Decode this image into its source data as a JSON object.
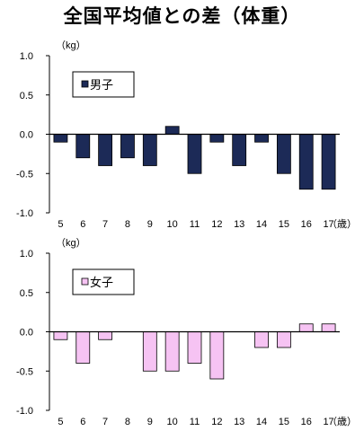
{
  "title": "全国平均値との差（体重）",
  "chart_data": [
    {
      "type": "bar",
      "unit_label": "（kg）",
      "x_unit_label": "（歳）",
      "legend": "男子",
      "legend_position": "top-left",
      "color": "#1c2a57",
      "categories": [
        "5",
        "6",
        "7",
        "8",
        "9",
        "10",
        "11",
        "12",
        "13",
        "14",
        "15",
        "16",
        "17"
      ],
      "values": [
        -0.1,
        -0.3,
        -0.4,
        -0.3,
        -0.4,
        0.1,
        -0.5,
        -0.1,
        -0.4,
        -0.1,
        -0.5,
        -0.7,
        -0.7
      ],
      "ylim": [
        -1.0,
        1.0
      ],
      "yticks": [
        "1.0",
        "0.5",
        "0.0",
        "-0.5",
        "-1.0"
      ],
      "grid": false
    },
    {
      "type": "bar",
      "unit_label": "（kg）",
      "x_unit_label": "（歳）",
      "legend": "女子",
      "legend_position": "top-left",
      "color": "#f6c3f3",
      "categories": [
        "5",
        "6",
        "7",
        "8",
        "9",
        "10",
        "11",
        "12",
        "13",
        "14",
        "15",
        "16",
        "17"
      ],
      "values": [
        -0.1,
        -0.4,
        -0.1,
        0.0,
        -0.5,
        -0.5,
        -0.4,
        -0.6,
        0.0,
        -0.2,
        -0.2,
        0.1,
        0.1
      ],
      "ylim": [
        -1.0,
        1.0
      ],
      "yticks": [
        "1.0",
        "0.5",
        "0.0",
        "-0.5",
        "-1.0"
      ],
      "grid": false
    }
  ]
}
